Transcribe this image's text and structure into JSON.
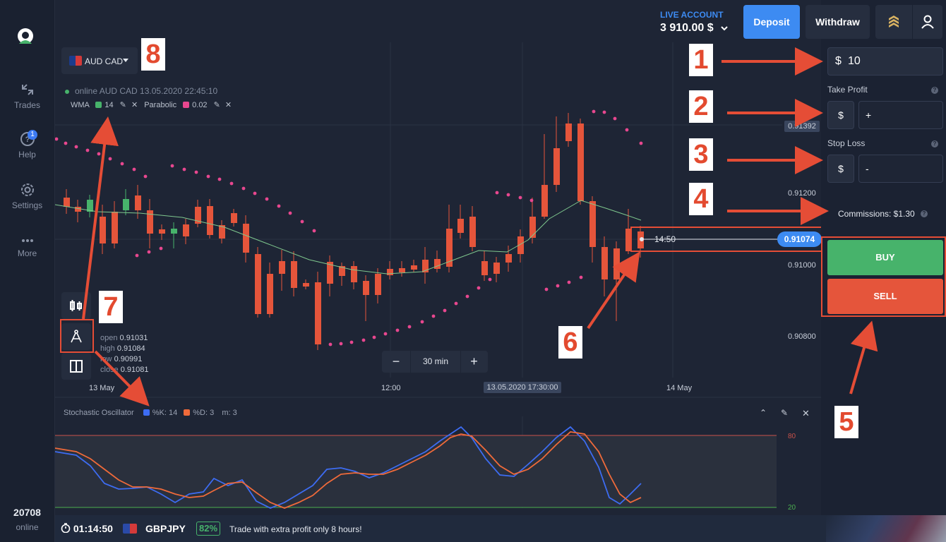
{
  "sidebar": {
    "items": [
      {
        "label": "Trades",
        "icon": "arrows-icon"
      },
      {
        "label": "Help",
        "icon": "question-icon",
        "badge": "1"
      },
      {
        "label": "Settings",
        "icon": "gear-icon"
      },
      {
        "label": "More",
        "icon": "dots-icon"
      }
    ],
    "online_count": "20708",
    "online_label": "online"
  },
  "header": {
    "account_label": "LIVE ACCOUNT",
    "balance": "3 910.00 $",
    "deposit_label": "Deposit",
    "withdraw_label": "Withdraw"
  },
  "chart": {
    "pair": "AUD CAD",
    "status_line": "online AUD CAD  13.05.2020 22:45:10",
    "indicators": {
      "wma_label": "WMA",
      "wma_value": "14",
      "parabolic_label": "Parabolic",
      "parabolic_value": "0.02"
    },
    "ohlc": {
      "open_label": "open",
      "open": "0.91031",
      "high_label": "high",
      "high": "0.91084",
      "low_label": "low",
      "low": "0.90991",
      "close_label": "close",
      "close": "0.91081"
    },
    "x_labels": [
      "13 May",
      "12:00",
      "14 May"
    ],
    "x_cursor": "13.05.2020 17:30:00",
    "y_labels": [
      "0.91200",
      "0.91000",
      "0.90800"
    ],
    "y_highlight": "0.91392",
    "timeframe": "30 min",
    "countdown": "14:50",
    "current_price": "0.91074",
    "colors": {
      "up": "#47b36b",
      "down": "#e5553b",
      "sar": "#e8478f",
      "wma": "#7fc88e"
    }
  },
  "oscillator": {
    "title": "Stochastic Oscillator",
    "k_label": "%K:",
    "k_value": "14",
    "d_label": "%D:",
    "d_value": "3",
    "m_label": "m:",
    "m_value": "3",
    "upper": "80",
    "lower": "20",
    "colors": {
      "k": "#3d6cf2",
      "d": "#ef6a3a"
    }
  },
  "order": {
    "currency": "$",
    "amount": "10",
    "take_profit_label": "Take Profit",
    "take_profit_value": "+",
    "stop_loss_label": "Stop Loss",
    "stop_loss_value": "-",
    "commission": "Commissions: $1.30",
    "buy_label": "BUY",
    "sell_label": "SELL"
  },
  "bottombar": {
    "timer": "01:14:50",
    "pair": "GBPJPY",
    "percent": "82%",
    "promo": "Trade with extra profit only 8 hours!"
  },
  "callouts": [
    "1",
    "2",
    "3",
    "4",
    "5",
    "6",
    "7",
    "8"
  ]
}
